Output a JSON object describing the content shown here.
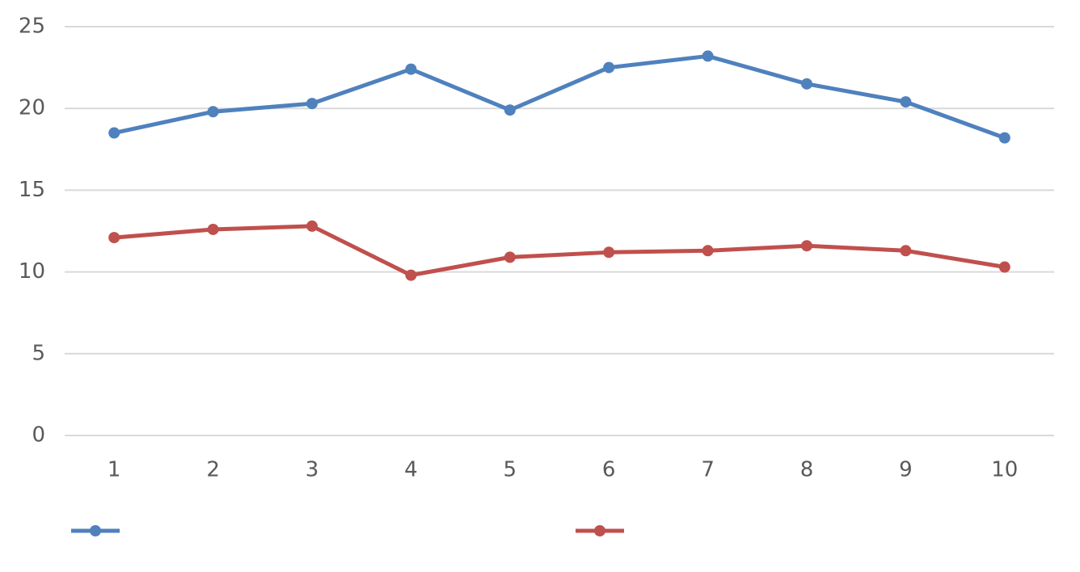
{
  "chart_data": {
    "type": "line",
    "x": [
      1,
      2,
      3,
      4,
      5,
      6,
      7,
      8,
      9,
      10
    ],
    "xlim": [
      0.5,
      10.5
    ],
    "xticks": [
      1,
      2,
      3,
      4,
      5,
      6,
      7,
      8,
      9,
      10
    ],
    "ylim": [
      0,
      25
    ],
    "yticks": [
      0,
      5,
      10,
      15,
      20,
      25
    ],
    "grid": true,
    "legend": "bottom",
    "series": [
      {
        "color": "#4f81bd",
        "values": [
          18.5,
          19.8,
          20.3,
          22.4,
          19.9,
          22.5,
          23.2,
          21.5,
          20.4,
          18.2
        ]
      },
      {
        "color": "#c0504d",
        "values": [
          12.1,
          12.6,
          12.8,
          9.8,
          10.9,
          11.2,
          11.3,
          11.6,
          11.3,
          10.3
        ]
      }
    ]
  }
}
